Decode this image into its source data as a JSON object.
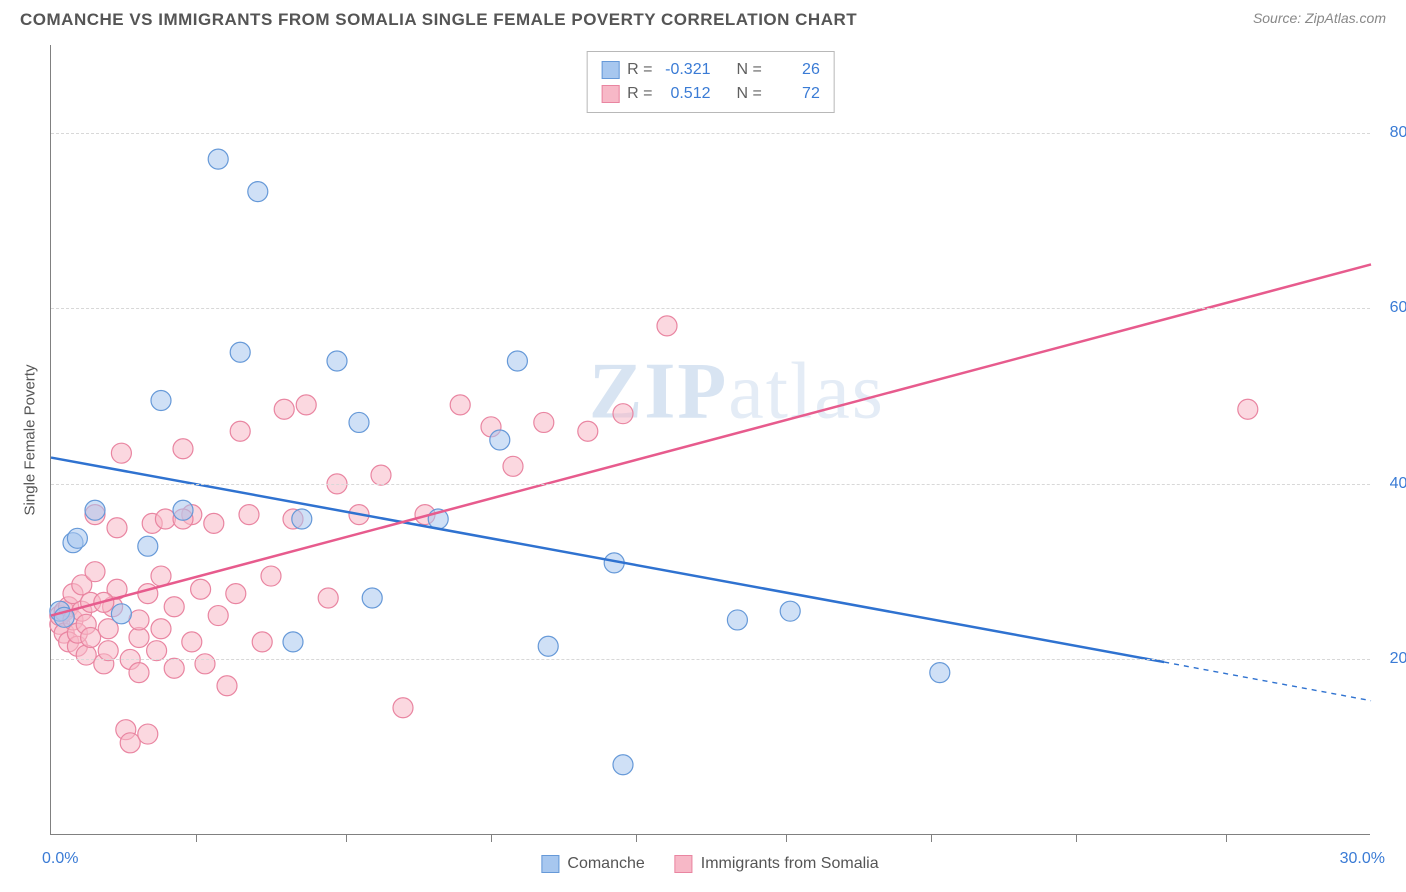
{
  "header": {
    "title": "COMANCHE VS IMMIGRANTS FROM SOMALIA SINGLE FEMALE POVERTY CORRELATION CHART",
    "source_prefix": "Source: ",
    "source_name": "ZipAtlas.com"
  },
  "chart": {
    "type": "scatter",
    "y_axis_label": "Single Female Poverty",
    "watermark": "ZIPatlas",
    "xlim": [
      0,
      30
    ],
    "ylim": [
      0,
      90
    ],
    "x_ticks_labels": {
      "min": "0.0%",
      "max": "30.0%"
    },
    "x_tick_positions": [
      3.3,
      6.7,
      10.0,
      13.3,
      16.7,
      20.0,
      23.3,
      26.7
    ],
    "y_grid": [
      {
        "value": 20,
        "label": "20.0%"
      },
      {
        "value": 40,
        "label": "40.0%"
      },
      {
        "value": 60,
        "label": "60.0%"
      },
      {
        "value": 80,
        "label": "80.0%"
      }
    ],
    "background_color": "#ffffff",
    "grid_color": "#d8d8d8",
    "axis_color": "#808080",
    "tick_label_color": "#3a7bd5",
    "marker_radius": 10,
    "marker_opacity": 0.55,
    "series": [
      {
        "key": "comanche",
        "label": "Comanche",
        "fill": "#a7c7ef",
        "stroke": "#6699d8",
        "line_color": "#2f72d0",
        "R": "-0.321",
        "N": "26",
        "trend": {
          "x1": 0,
          "y1": 43,
          "x2": 25.3,
          "y2": 19.7,
          "ext_x2": 30,
          "ext_y2": 15.3
        },
        "points": [
          [
            0.2,
            25.5
          ],
          [
            0.3,
            24.8
          ],
          [
            0.5,
            33.3
          ],
          [
            0.6,
            33.8
          ],
          [
            1.0,
            37.0
          ],
          [
            1.6,
            25.2
          ],
          [
            2.2,
            32.9
          ],
          [
            2.5,
            49.5
          ],
          [
            3.0,
            37.0
          ],
          [
            3.8,
            77.0
          ],
          [
            4.3,
            55.0
          ],
          [
            4.7,
            73.3
          ],
          [
            5.5,
            22.0
          ],
          [
            5.7,
            36.0
          ],
          [
            6.5,
            54.0
          ],
          [
            7.0,
            47.0
          ],
          [
            7.3,
            27.0
          ],
          [
            8.8,
            36.0
          ],
          [
            10.2,
            45.0
          ],
          [
            10.6,
            54.0
          ],
          [
            11.3,
            21.5
          ],
          [
            12.8,
            31.0
          ],
          [
            13.0,
            8.0
          ],
          [
            15.6,
            24.5
          ],
          [
            16.8,
            25.5
          ],
          [
            20.2,
            18.5
          ]
        ]
      },
      {
        "key": "somalia",
        "label": "Immigrants from Somalia",
        "fill": "#f7b8c7",
        "stroke": "#e985a1",
        "line_color": "#e75b8d",
        "R": "0.512",
        "N": "72",
        "trend": {
          "x1": 0,
          "y1": 25,
          "x2": 30,
          "y2": 65
        },
        "points": [
          [
            0.2,
            24.0
          ],
          [
            0.2,
            25.0
          ],
          [
            0.3,
            23.0
          ],
          [
            0.3,
            25.5
          ],
          [
            0.4,
            22.0
          ],
          [
            0.4,
            26.0
          ],
          [
            0.5,
            24.5
          ],
          [
            0.5,
            27.5
          ],
          [
            0.6,
            21.5
          ],
          [
            0.6,
            23.0
          ],
          [
            0.7,
            25.5
          ],
          [
            0.7,
            28.5
          ],
          [
            0.8,
            20.5
          ],
          [
            0.8,
            24.0
          ],
          [
            0.9,
            22.5
          ],
          [
            0.9,
            26.5
          ],
          [
            1.0,
            30.0
          ],
          [
            1.0,
            36.5
          ],
          [
            1.2,
            19.5
          ],
          [
            1.3,
            21.0
          ],
          [
            1.3,
            23.5
          ],
          [
            1.4,
            26.0
          ],
          [
            1.5,
            28.0
          ],
          [
            1.5,
            35.0
          ],
          [
            1.6,
            43.5
          ],
          [
            1.7,
            12.0
          ],
          [
            1.8,
            10.5
          ],
          [
            1.8,
            20.0
          ],
          [
            2.0,
            18.5
          ],
          [
            2.0,
            22.5
          ],
          [
            2.0,
            24.5
          ],
          [
            2.2,
            11.5
          ],
          [
            2.2,
            27.5
          ],
          [
            2.3,
            35.5
          ],
          [
            2.4,
            21.0
          ],
          [
            2.5,
            23.5
          ],
          [
            2.6,
            36.0
          ],
          [
            2.8,
            19.0
          ],
          [
            2.8,
            26.0
          ],
          [
            3.0,
            44.0
          ],
          [
            3.2,
            22.0
          ],
          [
            3.2,
            36.5
          ],
          [
            3.4,
            28.0
          ],
          [
            3.5,
            19.5
          ],
          [
            3.7,
            35.5
          ],
          [
            3.8,
            25.0
          ],
          [
            4.0,
            17.0
          ],
          [
            4.2,
            27.5
          ],
          [
            4.3,
            46.0
          ],
          [
            4.5,
            36.5
          ],
          [
            4.8,
            22.0
          ],
          [
            5.0,
            29.5
          ],
          [
            5.3,
            48.5
          ],
          [
            5.5,
            36.0
          ],
          [
            5.8,
            49.0
          ],
          [
            6.3,
            27.0
          ],
          [
            6.5,
            40.0
          ],
          [
            7.0,
            36.5
          ],
          [
            7.5,
            41.0
          ],
          [
            8.0,
            14.5
          ],
          [
            8.5,
            36.5
          ],
          [
            9.3,
            49.0
          ],
          [
            10.0,
            46.5
          ],
          [
            10.5,
            42.0
          ],
          [
            11.2,
            47.0
          ],
          [
            12.2,
            46.0
          ],
          [
            13.0,
            48.0
          ],
          [
            14.0,
            58.0
          ],
          [
            27.2,
            48.5
          ],
          [
            3.0,
            36.0
          ],
          [
            2.5,
            29.5
          ],
          [
            1.2,
            26.5
          ]
        ]
      }
    ]
  },
  "legend_stats_labels": {
    "R": "R =",
    "N": "N ="
  }
}
